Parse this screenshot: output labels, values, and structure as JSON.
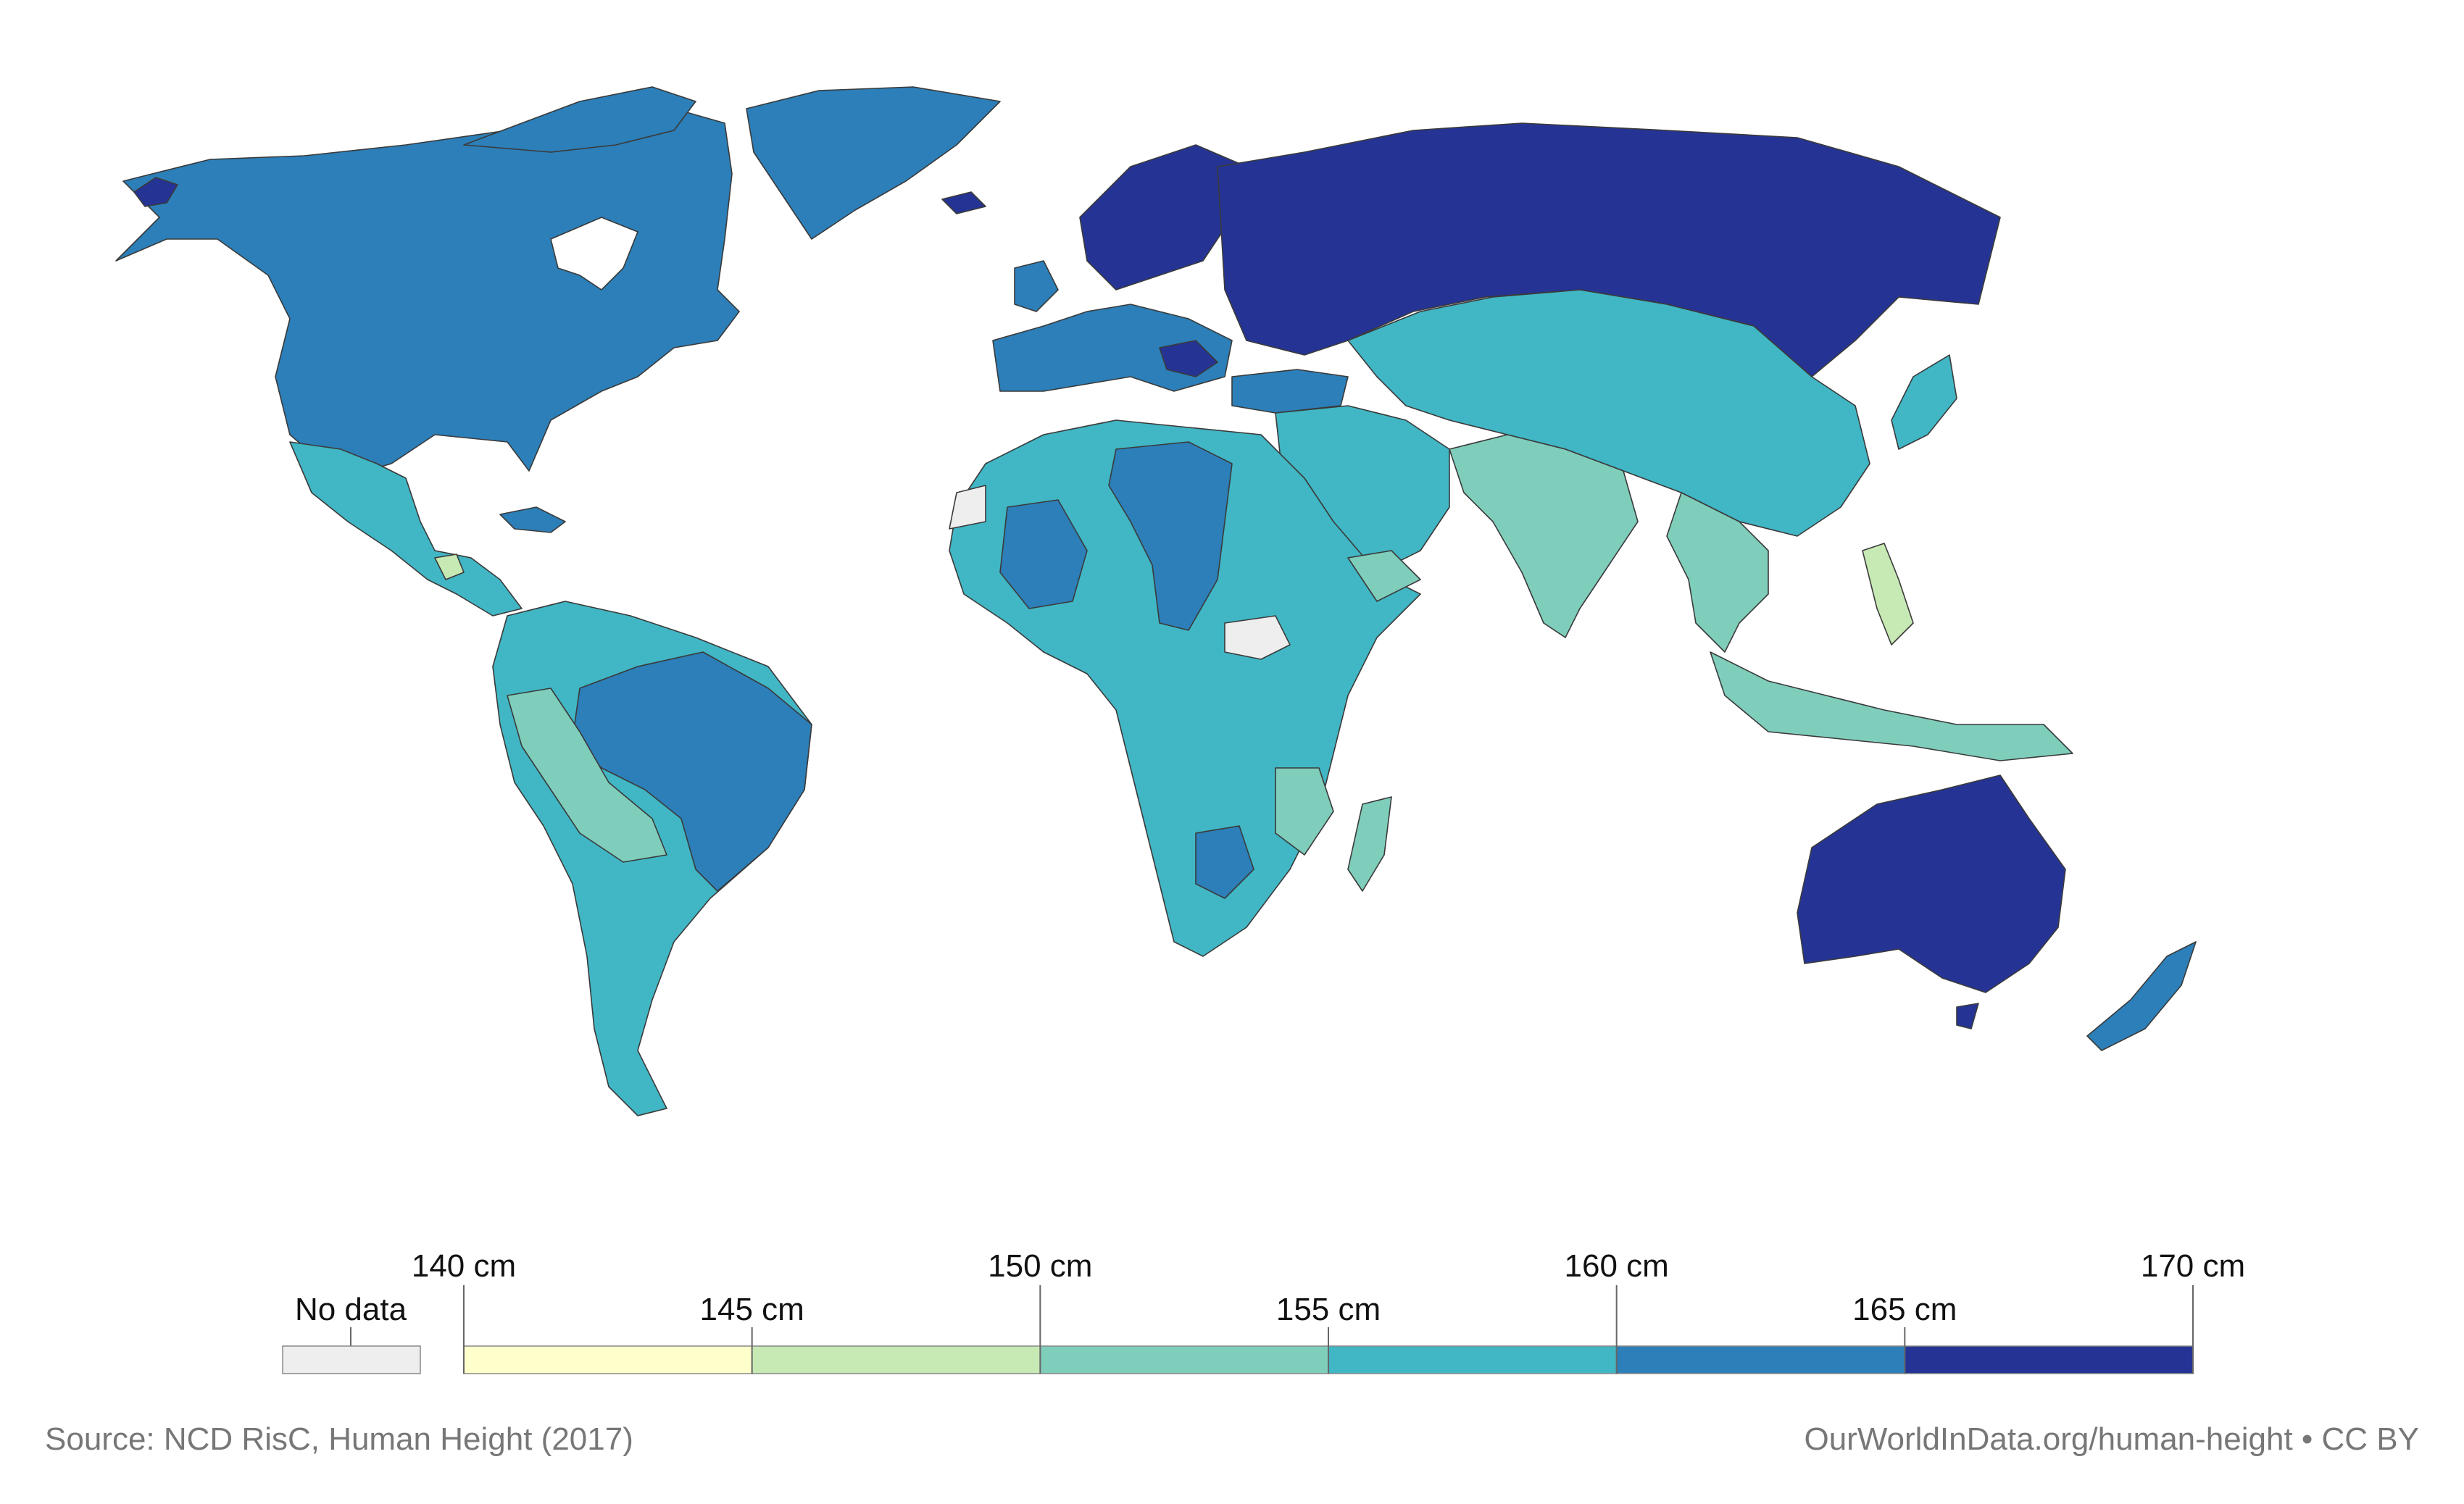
{
  "legend": {
    "no_data_label": "No data",
    "no_data_color": "#eeeeee",
    "ticks_upper": [
      "140 cm",
      "150 cm",
      "160 cm",
      "170 cm"
    ],
    "ticks_lower": [
      "145 cm",
      "155 cm",
      "165 cm"
    ],
    "bins": [
      {
        "from": 140,
        "to": 145,
        "color": "#ffffcc"
      },
      {
        "from": 145,
        "to": 150,
        "color": "#c7e9b4"
      },
      {
        "from": 150,
        "to": 155,
        "color": "#7fcdbb"
      },
      {
        "from": 155,
        "to": 160,
        "color": "#41b6c4"
      },
      {
        "from": 160,
        "to": 165,
        "color": "#2c7fb8"
      },
      {
        "from": 165,
        "to": 170,
        "color": "#253494"
      }
    ]
  },
  "regions": [
    {
      "name": "north-america",
      "bin": "160-165"
    },
    {
      "name": "greenland",
      "bin": "160-165"
    },
    {
      "name": "mexico-central-america",
      "bin": "155-160"
    },
    {
      "name": "south-america",
      "bin": "155-160"
    },
    {
      "name": "brazil",
      "bin": "160-165"
    },
    {
      "name": "andes",
      "bin": "150-155"
    },
    {
      "name": "northern-europe",
      "bin": "165-170"
    },
    {
      "name": "western-europe",
      "bin": "160-165"
    },
    {
      "name": "russia",
      "bin": "165-170"
    },
    {
      "name": "central-asia-china",
      "bin": "155-160"
    },
    {
      "name": "south-asia",
      "bin": "150-155"
    },
    {
      "name": "middle-east",
      "bin": "155-160"
    },
    {
      "name": "north-africa",
      "bin": "155-160"
    },
    {
      "name": "libya-chad-mali",
      "bin": "160-165"
    },
    {
      "name": "sub-saharan-africa",
      "bin": "155-160"
    },
    {
      "name": "east-africa-madagascar",
      "bin": "150-155"
    },
    {
      "name": "south-east-asia",
      "bin": "150-155"
    },
    {
      "name": "philippines",
      "bin": "145-150"
    },
    {
      "name": "japan-korea",
      "bin": "155-160"
    },
    {
      "name": "australia",
      "bin": "165-170"
    },
    {
      "name": "new-zealand",
      "bin": "160-165"
    },
    {
      "name": "south-sudan-western-sahara",
      "bin": "no-data"
    }
  ],
  "footer": {
    "source": "Source: NCD RisC, Human Height (2017)",
    "credit": "OurWorldInData.org/human-height • CC BY"
  }
}
